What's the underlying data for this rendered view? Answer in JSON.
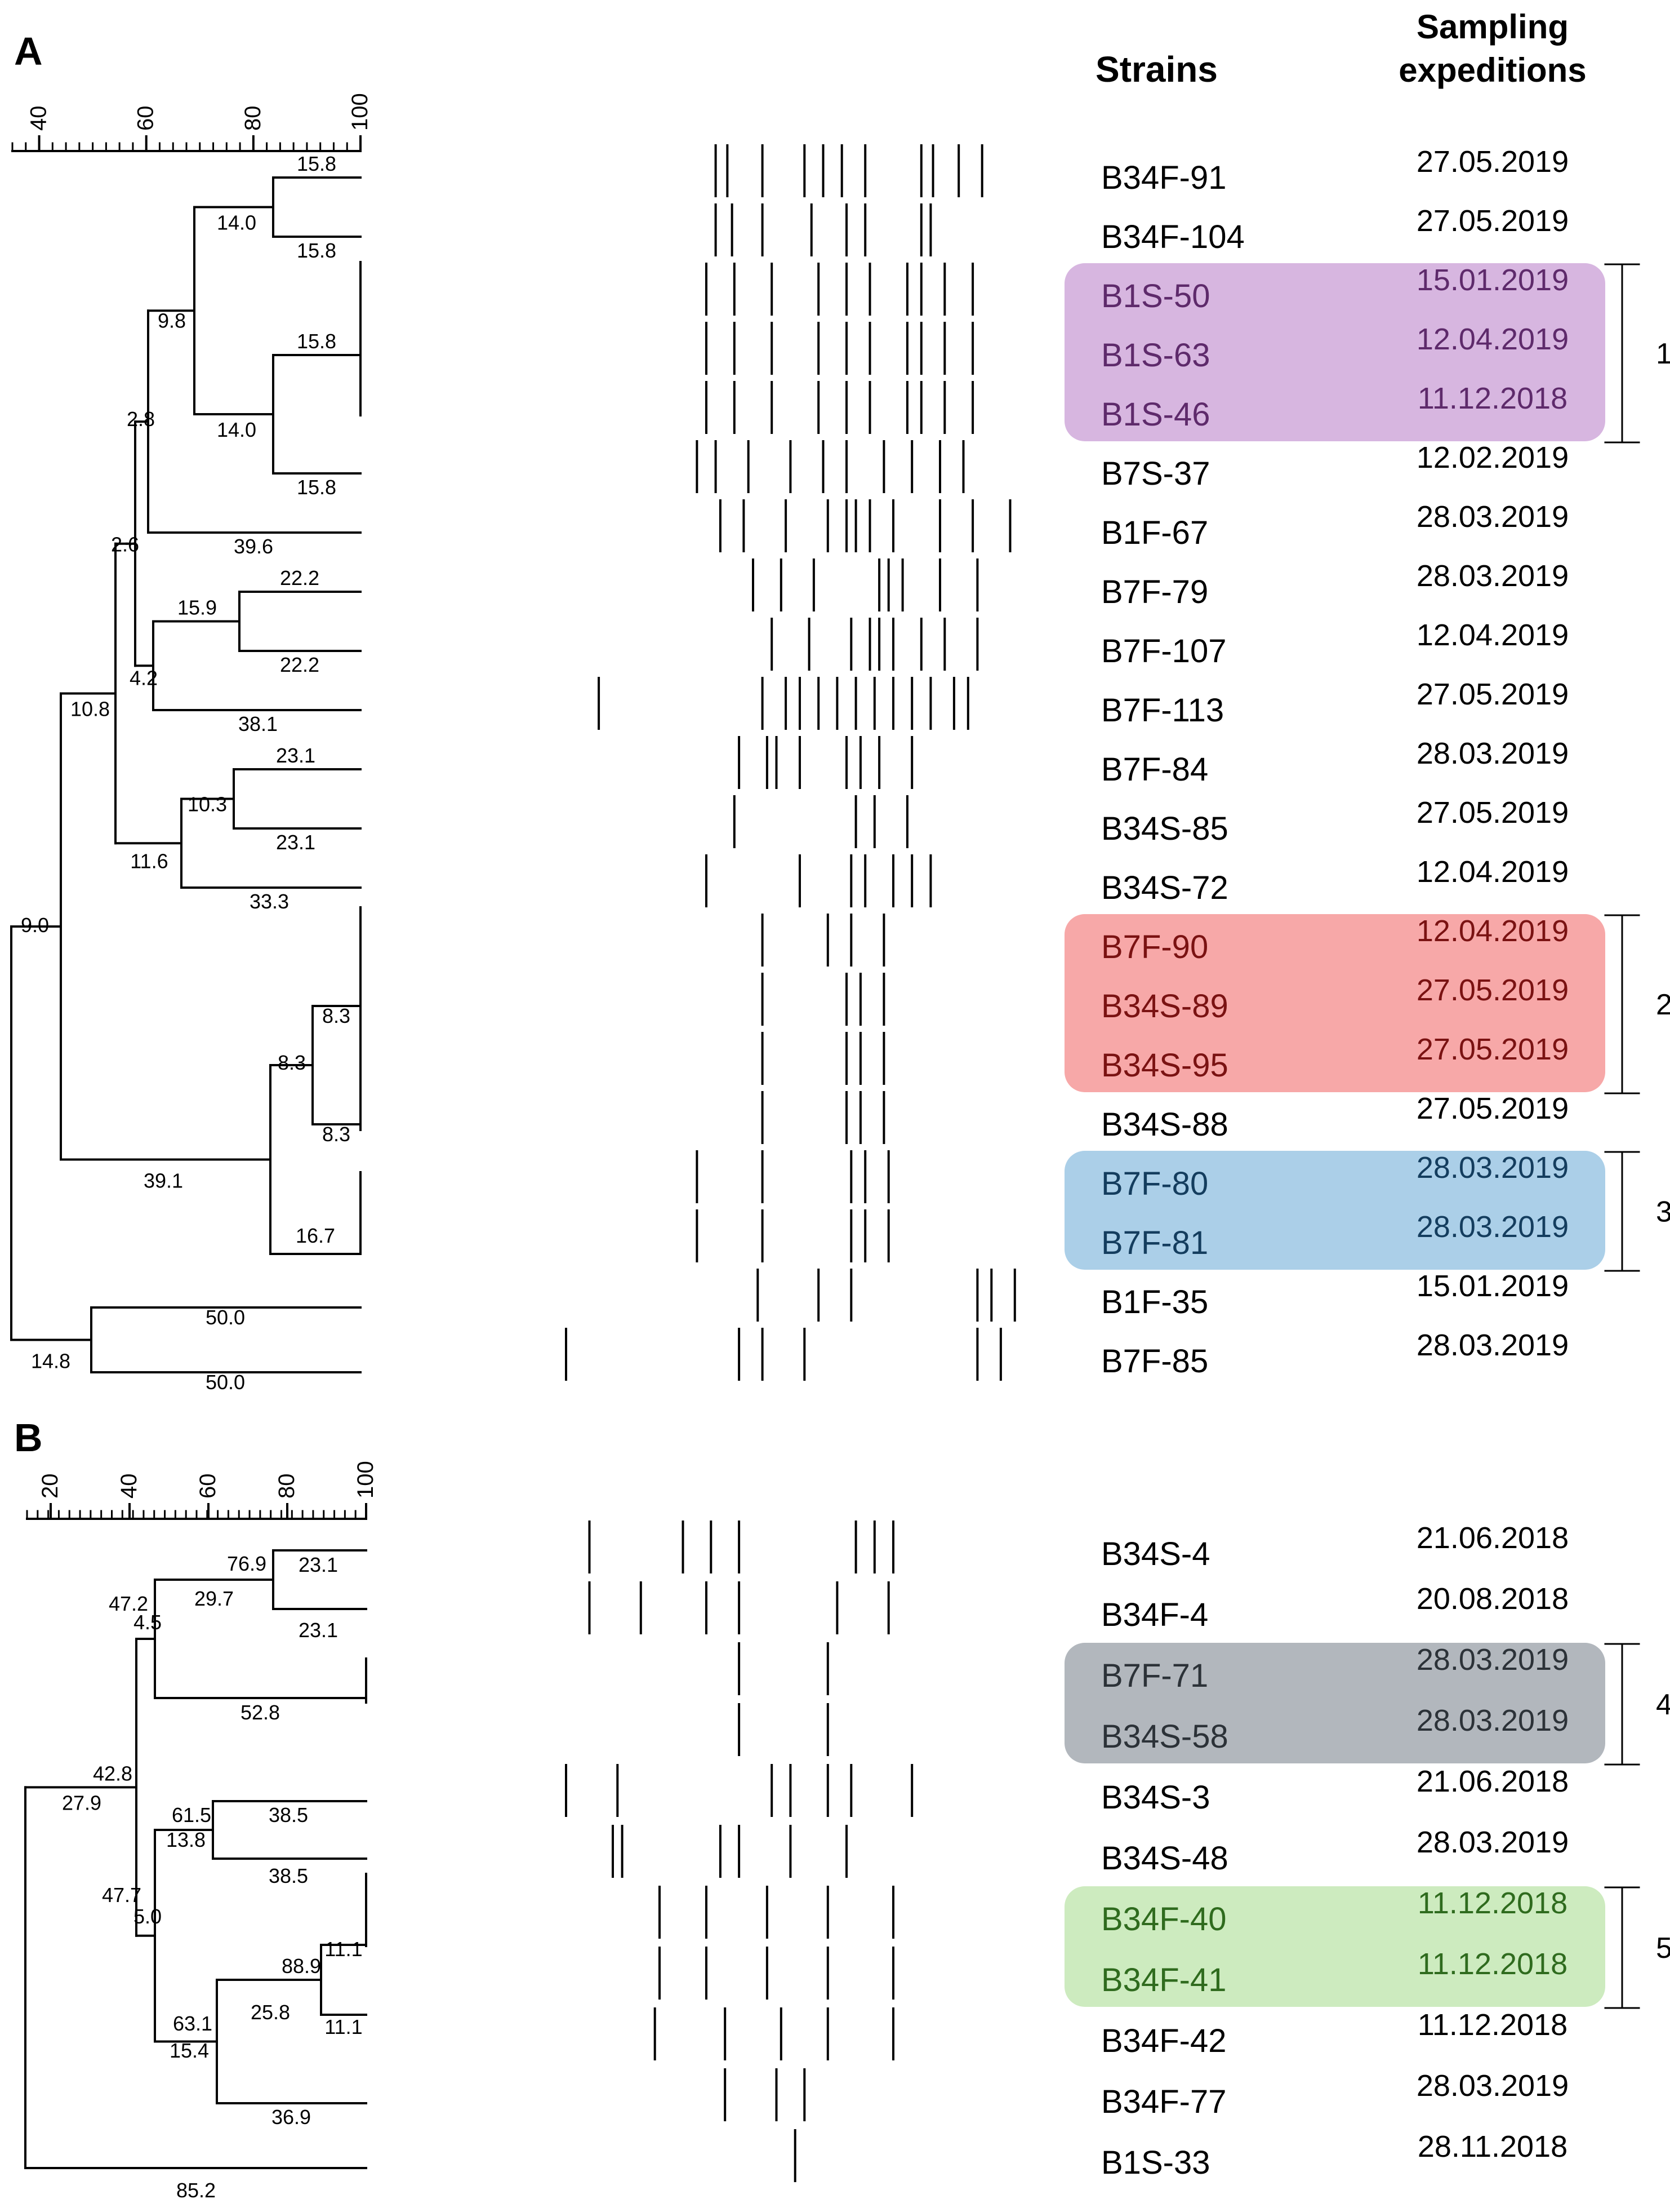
{
  "panels": [
    {
      "label": "A",
      "axis_ticks": [
        "40",
        "60",
        "80",
        "100"
      ],
      "headers": {
        "strains": "Strains",
        "expeditions_line1": "Sampling",
        "expeditions_line2": "expeditions"
      },
      "rows": [
        {
          "strain": "B34F-91",
          "date": "27.05.2019",
          "bands": [
            0.32,
            0.345,
            0.42,
            0.51,
            0.55,
            0.59,
            0.64,
            0.76,
            0.785,
            0.84,
            0.89
          ]
        },
        {
          "strain": "B34F-104",
          "date": "27.05.2019",
          "bands": [
            0.32,
            0.355,
            0.42,
            0.525,
            0.6,
            0.64,
            0.76,
            0.78
          ]
        },
        {
          "strain": "B1S-50",
          "date": "15.01.2019",
          "bands": [
            0.3,
            0.36,
            0.44,
            0.54,
            0.6,
            0.65,
            0.73,
            0.76,
            0.81,
            0.87
          ]
        },
        {
          "strain": "B1S-63",
          "date": "12.04.2019",
          "bands": [
            0.3,
            0.36,
            0.44,
            0.54,
            0.6,
            0.65,
            0.73,
            0.76,
            0.81,
            0.87
          ]
        },
        {
          "strain": "B1S-46",
          "date": "11.12.2018",
          "bands": [
            0.3,
            0.36,
            0.44,
            0.54,
            0.6,
            0.65,
            0.73,
            0.76,
            0.81,
            0.87
          ]
        },
        {
          "strain": "B7S-37",
          "date": "12.02.2019",
          "bands": [
            0.28,
            0.32,
            0.39,
            0.48,
            0.55,
            0.6,
            0.68,
            0.74,
            0.8,
            0.85
          ]
        },
        {
          "strain": "B1F-67",
          "date": "28.03.2019",
          "bands": [
            0.33,
            0.38,
            0.47,
            0.56,
            0.6,
            0.62,
            0.65,
            0.7,
            0.8,
            0.87,
            0.95
          ]
        },
        {
          "strain": "B7F-79",
          "date": "28.03.2019",
          "bands": [
            0.4,
            0.46,
            0.53,
            0.67,
            0.69,
            0.72,
            0.8,
            0.88
          ]
        },
        {
          "strain": "B7F-107",
          "date": "12.04.2019",
          "bands": [
            0.44,
            0.52,
            0.61,
            0.65,
            0.67,
            0.7,
            0.76,
            0.81,
            0.88
          ]
        },
        {
          "strain": "B7F-113",
          "date": "27.05.2019",
          "bands": [
            0.07,
            0.42,
            0.47,
            0.5,
            0.54,
            0.58,
            0.62,
            0.66,
            0.7,
            0.74,
            0.78,
            0.83,
            0.86
          ]
        },
        {
          "strain": "B7F-84",
          "date": "28.03.2019",
          "bands": [
            0.37,
            0.43,
            0.45,
            0.5,
            0.6,
            0.63,
            0.67,
            0.74
          ]
        },
        {
          "strain": "B34S-85",
          "date": "27.05.2019",
          "bands": [
            0.36,
            0.62,
            0.66,
            0.73
          ]
        },
        {
          "strain": "B34S-72",
          "date": "12.04.2019",
          "bands": [
            0.3,
            0.5,
            0.61,
            0.64,
            0.7,
            0.74,
            0.78
          ]
        },
        {
          "strain": "B7F-90",
          "date": "12.04.2019",
          "bands": [
            0.42,
            0.56,
            0.61,
            0.68
          ]
        },
        {
          "strain": "B34S-89",
          "date": "27.05.2019",
          "bands": [
            0.42,
            0.6,
            0.63,
            0.68
          ]
        },
        {
          "strain": "B34S-95",
          "date": "27.05.2019",
          "bands": [
            0.42,
            0.6,
            0.63,
            0.68
          ]
        },
        {
          "strain": "B34S-88",
          "date": "27.05.2019",
          "bands": [
            0.42,
            0.6,
            0.63,
            0.68
          ]
        },
        {
          "strain": "B7F-80",
          "date": "28.03.2019",
          "bands": [
            0.28,
            0.42,
            0.61,
            0.64,
            0.69
          ]
        },
        {
          "strain": "B7F-81",
          "date": "28.03.2019",
          "bands": [
            0.28,
            0.42,
            0.61,
            0.64,
            0.69
          ]
        },
        {
          "strain": "B1F-35",
          "date": "15.01.2019",
          "bands": [
            0.41,
            0.54,
            0.61,
            0.88,
            0.91,
            0.96
          ]
        },
        {
          "strain": "B7F-85",
          "date": "28.03.2019",
          "bands": [
            0.0,
            0.37,
            0.42,
            0.51,
            0.88,
            0.93
          ]
        }
      ],
      "clusters": [
        {
          "label": "1",
          "color": "#d7b6e0",
          "text_color": "#5e2a6b",
          "first_row": 2,
          "last_row": 4
        },
        {
          "label": "2",
          "color": "#f7a8a8",
          "text_color": "#7a1212",
          "first_row": 13,
          "last_row": 15
        },
        {
          "label": "3",
          "color": "#abcfe8",
          "text_color": "#143d5e",
          "first_row": 17,
          "last_row": 18
        }
      ],
      "tree": {
        "h": 39.1,
        "children": [
          {
            "h": 10.8,
            "children": [
              {
                "h": 2.6,
                "children": [
                  {
                    "h": 2.8,
                    "children": [
                      {
                        "h": 9.8,
                        "children": [
                          {
                            "h": 14.0,
                            "children": [
                              {
                                "leaf": 0
                              },
                              {
                                "leaf": 1
                              }
                            ]
                          },
                          {
                            "h": 14.0,
                            "children": [
                              {
                                "leaf": 2
                              },
                              {
                                "leaf": 3
                              },
                              {
                                "leaf": 4
                              }
                            ]
                          }
                        ]
                      },
                      {
                        "leaf": 5
                      }
                    ]
                  },
                  {
                    "h": 4.2,
                    "children": [
                      {
                        "h": 15.9,
                        "children": [
                          {
                            "leaf": 6
                          },
                          {
                            "leaf": 7
                          }
                        ]
                      },
                      {
                        "leaf": 8
                      }
                    ]
                  }
                ]
              },
              {
                "h": 11.6,
                "children": [
                  {
                    "h": 10.3,
                    "children": [
                      {
                        "leaf": 9
                      },
                      {
                        "leaf": 10
                      }
                    ]
                  },
                  {
                    "leaf": 11
                  }
                ]
              }
            ]
          },
          {
            "h": 8.3,
            "children": [
              {
                "h": 8.3,
                "children": [
                  {
                    "leaf": 12
                  },
                  {
                    "leaf": 13
                  },
                  {
                    "leaf": 14
                  },
                  {
                    "leaf": 15
                  }
                ]
              },
              {
                "h": 16.7,
                "children": [
                  {
                    "leaf": 16
                  },
                  {
                    "leaf": 17
                  }
                ]
              }
            ]
          }
        ]
      },
      "outer_tree": {
        "root_label": "9.0",
        "group_label": "14.8",
        "group_leaf_label": "50.0"
      },
      "branch_labels": [
        "15.8",
        "15.8",
        "14.0",
        "9.8",
        "15.8",
        "14.0",
        "15.8",
        "2.8",
        "39.6",
        "2.6",
        "22.2",
        "15.9",
        "22.2",
        "4.2",
        "38.1",
        "10.8",
        "23.1",
        "10.3",
        "23.1",
        "11.6",
        "33.3",
        "9.0",
        "8.3",
        "8.3",
        "8.3",
        "39.1",
        "16.7",
        "50.0",
        "14.8",
        "50.0"
      ]
    },
    {
      "label": "B",
      "axis_ticks": [
        "20",
        "40",
        "60",
        "80",
        "100"
      ],
      "rows": [
        {
          "strain": "B34S-4",
          "date": "21.06.2018",
          "bands": [
            0.05,
            0.25,
            0.31,
            0.37,
            0.62,
            0.66,
            0.7
          ]
        },
        {
          "strain": "B34F-4",
          "date": "20.08.2018",
          "bands": [
            0.05,
            0.16,
            0.3,
            0.37,
            0.58,
            0.69
          ]
        },
        {
          "strain": "B7F-71",
          "date": "28.03.2019",
          "bands": [
            0.37,
            0.56
          ]
        },
        {
          "strain": "B34S-58",
          "date": "28.03.2019",
          "bands": [
            0.37,
            0.56
          ]
        },
        {
          "strain": "B34S-3",
          "date": "21.06.2018",
          "bands": [
            0.0,
            0.11,
            0.44,
            0.48,
            0.56,
            0.61,
            0.74
          ]
        },
        {
          "strain": "B34S-48",
          "date": "28.03.2019",
          "bands": [
            0.1,
            0.12,
            0.33,
            0.37,
            0.48,
            0.6
          ]
        },
        {
          "strain": "B34F-40",
          "date": "11.12.2018",
          "bands": [
            0.2,
            0.3,
            0.43,
            0.56,
            0.7
          ]
        },
        {
          "strain": "B34F-41",
          "date": "11.12.2018",
          "bands": [
            0.2,
            0.3,
            0.43,
            0.56,
            0.7
          ]
        },
        {
          "strain": "B34F-42",
          "date": "11.12.2018",
          "bands": [
            0.19,
            0.34,
            0.46,
            0.56,
            0.7
          ]
        },
        {
          "strain": "B34F-77",
          "date": "28.03.2019",
          "bands": [
            0.34,
            0.45,
            0.51
          ]
        },
        {
          "strain": "B1S-33",
          "date": "28.11.2018",
          "bands": [
            0.49
          ]
        }
      ],
      "clusters": [
        {
          "label": "4",
          "color": "#b2b7bd",
          "text_color": "#2c3238",
          "first_row": 2,
          "last_row": 3
        },
        {
          "label": "5",
          "color": "#cdebbf",
          "text_color": "#2f6b1e",
          "first_row": 6,
          "last_row": 7
        }
      ],
      "branch_labels": [
        "76.9",
        "23.1",
        "29.7",
        "23.1",
        "47.2",
        "4.5",
        "52.8",
        "42.8",
        "27.9",
        "61.5",
        "38.5",
        "13.8",
        "38.5",
        "47.7",
        "5.0",
        "88.9",
        "11.1",
        "25.8",
        "11.1",
        "63.1",
        "15.4",
        "36.9",
        "85.2"
      ]
    }
  ]
}
